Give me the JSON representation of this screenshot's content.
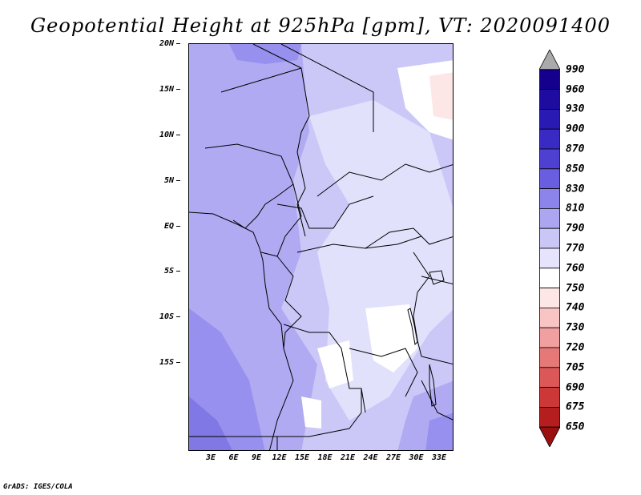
{
  "title": "Geopotential Height at 925hPa [gpm], VT: 2020091400",
  "footer": "GrADS: IGES/COLA",
  "map": {
    "variable": "Geopotential Height",
    "level": "925hPa",
    "units": "gpm",
    "valid_time": "2020091400",
    "lat_labels": [
      "20N",
      "15N",
      "10N",
      "5N",
      "EQ",
      "5S",
      "10S",
      "15S"
    ],
    "lon_labels": [
      "3E",
      "6E",
      "9E",
      "12E",
      "15E",
      "18E",
      "21E",
      "24E",
      "27E",
      "30E",
      "33E"
    ]
  },
  "colorbar": {
    "levels": [
      "990",
      "960",
      "930",
      "900",
      "870",
      "850",
      "830",
      "810",
      "790",
      "770",
      "760",
      "750",
      "740",
      "730",
      "720",
      "705",
      "690",
      "675",
      "650"
    ],
    "colors": [
      "#aaaaaa",
      "#14008c",
      "#1e0ca0",
      "#2a1ab4",
      "#3a2ac4",
      "#4e40d0",
      "#6a5ee0",
      "#8c84ea",
      "#aca6f0",
      "#cac7f6",
      "#e6e4fc",
      "#ffffff",
      "#fde6e6",
      "#f8c4c4",
      "#f0a0a0",
      "#e67878",
      "#dc5858",
      "#cc3838",
      "#b41e1e",
      "#9a1010"
    ]
  },
  "fields": {
    "c_810": "#b0aaf2",
    "c_790": "#cbc8f8",
    "c_770": "#e2e1fc",
    "c_760": "#ffffff",
    "c_750": "#fde6e6",
    "c_830": "#9890ee",
    "c_850": "#8078e4"
  }
}
